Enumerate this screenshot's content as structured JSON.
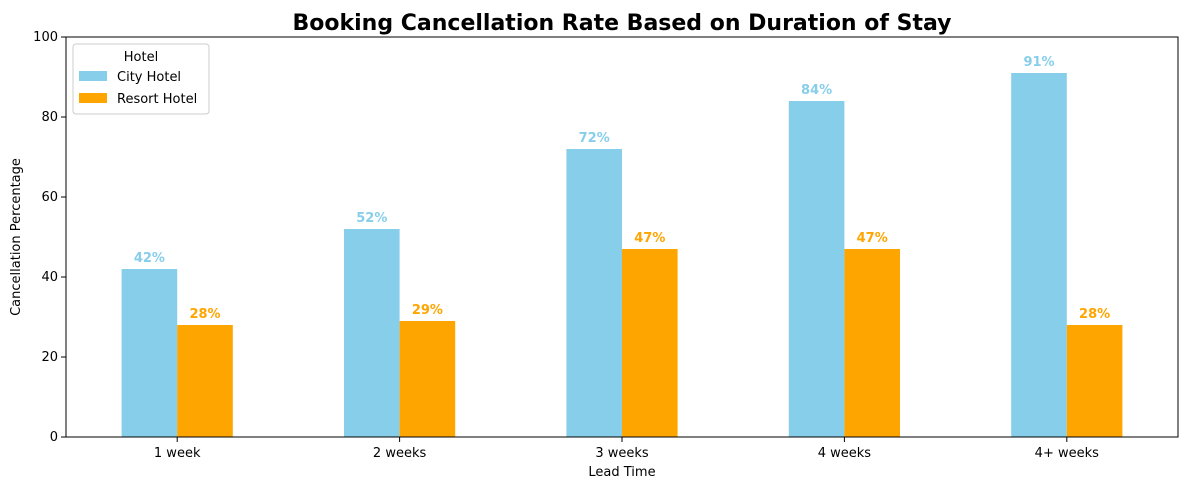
{
  "chart_data": {
    "type": "bar",
    "title": "Booking Cancellation Rate Based on Duration of Stay",
    "xlabel": "Lead Time",
    "ylabel": "Cancellation Percentage",
    "categories": [
      "1 week",
      "2 weeks",
      "3 weeks",
      "4 weeks",
      "4+ weeks"
    ],
    "ylim": [
      0,
      100
    ],
    "yticks": [
      0,
      20,
      40,
      60,
      80,
      100
    ],
    "grid": false,
    "legend": {
      "title": "Hotel",
      "placement": "top-left"
    },
    "series": [
      {
        "name": "City Hotel",
        "color": "#87ceeb",
        "values": [
          42,
          52,
          72,
          84,
          91
        ],
        "labels": [
          "42%",
          "52%",
          "72%",
          "84%",
          "91%"
        ]
      },
      {
        "name": "Resort Hotel",
        "color": "#ffa500",
        "values": [
          28,
          29,
          47,
          47,
          28
        ],
        "labels": [
          "28%",
          "29%",
          "47%",
          "47%",
          "28%"
        ]
      }
    ]
  }
}
